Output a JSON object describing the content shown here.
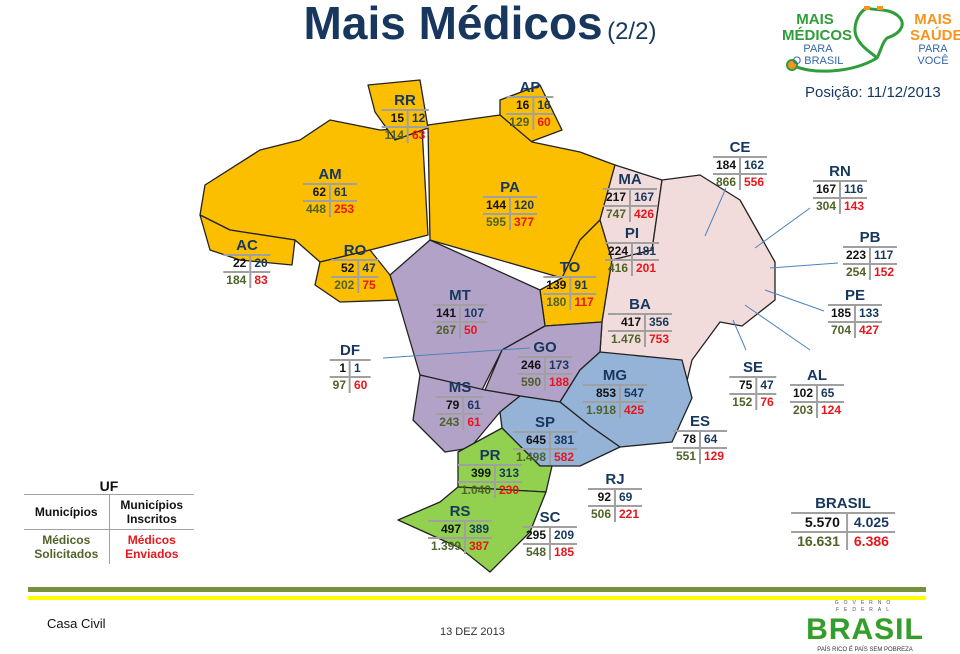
{
  "header": {
    "title": "Mais Médicos",
    "subtitle": "(2/2)",
    "position": "Posição: 11/12/2013"
  },
  "logo": {
    "l1": "MAIS",
    "l2": "MÉDICOS",
    "l3": "PARA",
    "l4": "O BRASIL",
    "r1": "MAIS",
    "r2": "SAÚDE",
    "r3": "PARA",
    "r4": "VOCÊ"
  },
  "colors": {
    "north": "#FBBF00",
    "northeast": "#F2DCDB",
    "centerwest": "#B3A2C7",
    "southeast": "#95B3D7",
    "south": "#92D050",
    "requested": "#4F6228",
    "sent": "#E8161B"
  },
  "states": [
    {
      "uf": "RR",
      "municipios": "15",
      "inscritos": "12",
      "solicitados": "114",
      "enviados": "63"
    },
    {
      "uf": "AP",
      "municipios": "16",
      "inscritos": "16",
      "solicitados": "129",
      "enviados": "60"
    },
    {
      "uf": "AM",
      "municipios": "62",
      "inscritos": "61",
      "solicitados": "448",
      "enviados": "253"
    },
    {
      "uf": "PA",
      "municipios": "144",
      "inscritos": "120",
      "solicitados": "595",
      "enviados": "377"
    },
    {
      "uf": "AC",
      "municipios": "22",
      "inscritos": "20",
      "solicitados": "184",
      "enviados": "83"
    },
    {
      "uf": "RO",
      "municipios": "52",
      "inscritos": "47",
      "solicitados": "202",
      "enviados": "75"
    },
    {
      "uf": "MA",
      "municipios": "217",
      "inscritos": "167",
      "solicitados": "747",
      "enviados": "426"
    },
    {
      "uf": "CE",
      "municipios": "184",
      "inscritos": "162",
      "solicitados": "866",
      "enviados": "556"
    },
    {
      "uf": "RN",
      "municipios": "167",
      "inscritos": "116",
      "solicitados": "304",
      "enviados": "143"
    },
    {
      "uf": "PB",
      "municipios": "223",
      "inscritos": "117",
      "solicitados": "254",
      "enviados": "152"
    },
    {
      "uf": "PI",
      "municipios": "224",
      "inscritos": "181",
      "solicitados": "416",
      "enviados": "201"
    },
    {
      "uf": "TO",
      "municipios": "139",
      "inscritos": "91",
      "solicitados": "180",
      "enviados": "117"
    },
    {
      "uf": "MT",
      "municipios": "141",
      "inscritos": "107",
      "solicitados": "267",
      "enviados": "50"
    },
    {
      "uf": "BA",
      "municipios": "417",
      "inscritos": "356",
      "solicitados": "1.476",
      "enviados": "753"
    },
    {
      "uf": "PE",
      "municipios": "185",
      "inscritos": "133",
      "solicitados": "704",
      "enviados": "427"
    },
    {
      "uf": "SE",
      "municipios": "75",
      "inscritos": "47",
      "solicitados": "152",
      "enviados": "76"
    },
    {
      "uf": "AL",
      "municipios": "102",
      "inscritos": "65",
      "solicitados": "203",
      "enviados": "124"
    },
    {
      "uf": "DF",
      "municipios": "1",
      "inscritos": "1",
      "solicitados": "97",
      "enviados": "60"
    },
    {
      "uf": "GO",
      "municipios": "246",
      "inscritos": "173",
      "solicitados": "590",
      "enviados": "188"
    },
    {
      "uf": "MS",
      "municipios": "79",
      "inscritos": "61",
      "solicitados": "243",
      "enviados": "61"
    },
    {
      "uf": "MG",
      "municipios": "853",
      "inscritos": "547",
      "solicitados": "1.918",
      "enviados": "425"
    },
    {
      "uf": "SP",
      "municipios": "645",
      "inscritos": "381",
      "solicitados": "1.498",
      "enviados": "582"
    },
    {
      "uf": "ES",
      "municipios": "78",
      "inscritos": "64",
      "solicitados": "551",
      "enviados": "129"
    },
    {
      "uf": "PR",
      "municipios": "399",
      "inscritos": "313",
      "solicitados": "1.040",
      "enviados": "230"
    },
    {
      "uf": "RJ",
      "municipios": "92",
      "inscritos": "69",
      "solicitados": "506",
      "enviados": "221"
    },
    {
      "uf": "RS",
      "municipios": "497",
      "inscritos": "389",
      "solicitados": "1.399",
      "enviados": "387"
    },
    {
      "uf": "SC",
      "municipios": "295",
      "inscritos": "209",
      "solicitados": "548",
      "enviados": "185"
    },
    {
      "uf": "BRASIL",
      "municipios": "5.570",
      "inscritos": "4.025",
      "solicitados": "16.631",
      "enviados": "6.386"
    }
  ],
  "legend": {
    "title": "UF",
    "municipios": "Municípios",
    "inscritos": "Municípios Inscritos",
    "solicitados": "Médicos Solicitados",
    "enviados": "Médicos Enviados"
  },
  "footer": {
    "left": "Casa Civil",
    "date": "13 DEZ 2013",
    "gov": "GOVERNO FEDERAL",
    "brand": "BRASIL",
    "tagline": "PAÍS RICO É PAÍS SEM POBREZA"
  }
}
